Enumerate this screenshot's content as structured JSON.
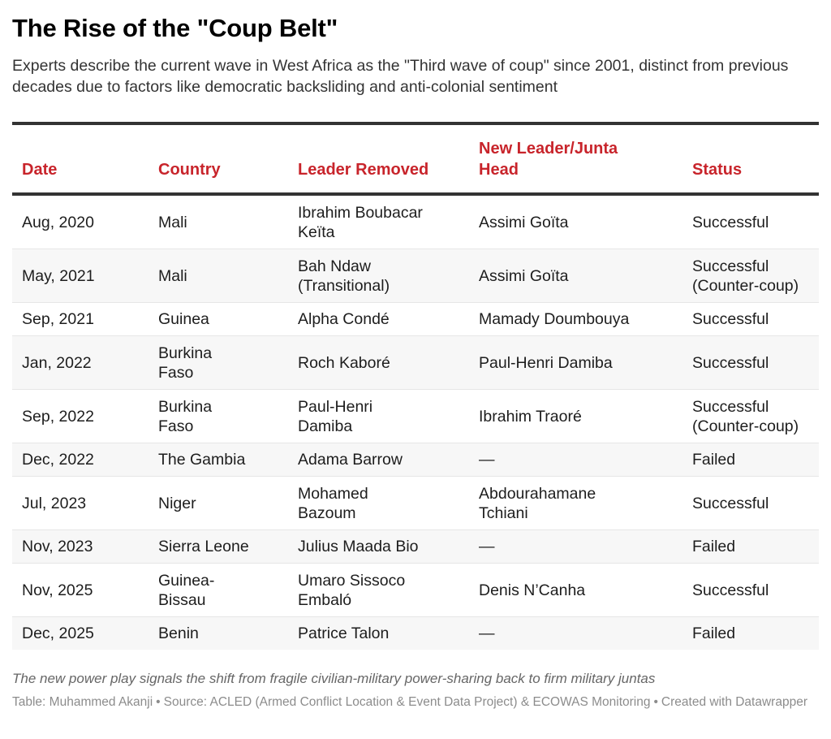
{
  "header": {
    "title": "The Rise of the \"Coup Belt\"",
    "description": "Experts describe the current wave in West Africa as the \"Third wave of coup\" since 2001, distinct from previous decades due to factors like democratic backsliding and anti-colonial sentiment"
  },
  "colors": {
    "header_text": "#c8242b",
    "rule": "#333333",
    "row_alt": "#f7f7f7",
    "row_divider": "#e6e6e6"
  },
  "table": {
    "columns": [
      "Date",
      "Country",
      "Leader Removed",
      "New Leader/Junta Head",
      "Status"
    ],
    "rows": [
      {
        "date": "Aug, 2020",
        "country": "Mali",
        "leader_removed": "Ibrahim Boubacar Keïta",
        "new_leader": "Assimi Goïta",
        "status": "Successful"
      },
      {
        "date": "May, 2021",
        "country": "Mali",
        "leader_removed": "Bah Ndaw (Transitional)",
        "new_leader": "Assimi Goïta",
        "status": "Successful (Counter-coup)"
      },
      {
        "date": "Sep, 2021",
        "country": "Guinea",
        "leader_removed": "Alpha Condé",
        "new_leader": "Mamady Doumbouya",
        "status": "Successful"
      },
      {
        "date": "Jan, 2022",
        "country": "Burkina Faso",
        "leader_removed": "Roch Kaboré",
        "new_leader": "Paul-Henri Damiba",
        "status": "Successful"
      },
      {
        "date": "Sep, 2022",
        "country": "Burkina Faso",
        "leader_removed": "Paul-Henri Damiba",
        "new_leader": "Ibrahim Traoré",
        "status": "Successful (Counter-coup)"
      },
      {
        "date": "Dec, 2022",
        "country": "The Gambia",
        "leader_removed": "Adama Barrow",
        "new_leader": "—",
        "status": "Failed"
      },
      {
        "date": "Jul, 2023",
        "country": "Niger",
        "leader_removed": "Mohamed Bazoum",
        "new_leader": "Abdourahamane Tchiani",
        "status": "Successful"
      },
      {
        "date": "Nov, 2023",
        "country": "Sierra Leone",
        "leader_removed": "Julius Maada Bio",
        "new_leader": "—",
        "status": "Failed"
      },
      {
        "date": "Nov, 2025",
        "country": "Guinea-Bissau",
        "leader_removed": "Umaro Sissoco Embaló",
        "new_leader": "Denis N’Canha",
        "status": "Successful"
      },
      {
        "date": "Dec, 2025",
        "country": "Benin",
        "leader_removed": "Patrice Talon",
        "new_leader": "—",
        "status": "Failed"
      }
    ]
  },
  "footer": {
    "notes": "The new power play signals the shift from fragile civilian-military power-sharing back to firm military juntas",
    "byline": "Table: Muhammed Akanji",
    "source": "Source: ACLED (Armed Conflict Location & Event Data Project) & ECOWAS Monitoring",
    "credit": "Created with Datawrapper",
    "separator": "•"
  }
}
